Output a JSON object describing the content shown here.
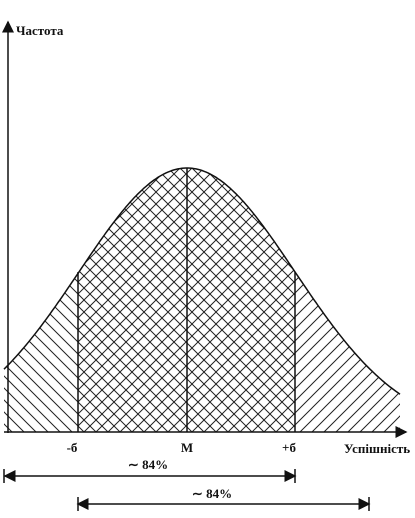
{
  "y_axis_label": "Частота",
  "x_axis_label": "Успішність",
  "x_marks": [
    "-б",
    "М",
    "+б"
  ],
  "ranges": [
    {
      "label": "∼ 84%"
    },
    {
      "label": "∼ 84%"
    }
  ]
}
